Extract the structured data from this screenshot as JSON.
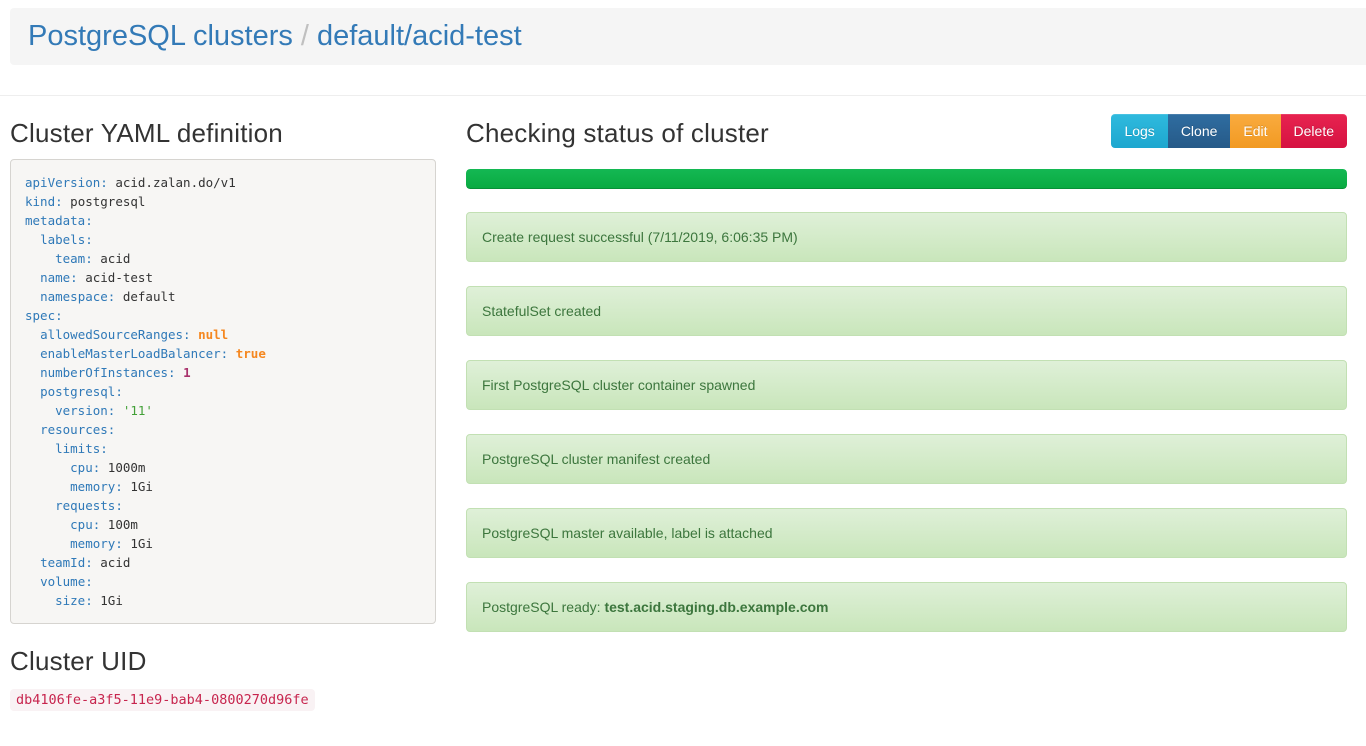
{
  "colors": {
    "link_blue": "#337ab7",
    "yaml_key_blue": "#2f79b8",
    "yaml_literal_orange": "#f5871f",
    "yaml_number_magenta": "#a9326c",
    "yaml_string_green": "#42a037",
    "uid_pink": "#c7254e",
    "progress_green": "#0db14a",
    "alert_green_text": "#3c763d",
    "button_info": "#25b1d8",
    "button_primary": "#2a6496",
    "button_warning": "#f8a433",
    "button_danger": "#e0194a"
  },
  "breadcrumb": {
    "root": "PostgreSQL clusters",
    "separator": "/",
    "current": "default/acid-test"
  },
  "yaml_section": {
    "title": "Cluster YAML definition",
    "lines": [
      {
        "indent": 0,
        "key": "apiVersion",
        "value": "acid.zalan.do/v1",
        "type": "plain"
      },
      {
        "indent": 0,
        "key": "kind",
        "value": "postgresql",
        "type": "plain"
      },
      {
        "indent": 0,
        "key": "metadata",
        "value": "",
        "type": "none"
      },
      {
        "indent": 2,
        "key": "labels",
        "value": "",
        "type": "none"
      },
      {
        "indent": 4,
        "key": "team",
        "value": "acid",
        "type": "plain"
      },
      {
        "indent": 2,
        "key": "name",
        "value": "acid-test",
        "type": "plain"
      },
      {
        "indent": 2,
        "key": "namespace",
        "value": "default",
        "type": "plain"
      },
      {
        "indent": 0,
        "key": "spec",
        "value": "",
        "type": "none"
      },
      {
        "indent": 2,
        "key": "allowedSourceRanges",
        "value": "null",
        "type": "literal"
      },
      {
        "indent": 2,
        "key": "enableMasterLoadBalancer",
        "value": "true",
        "type": "literal"
      },
      {
        "indent": 2,
        "key": "numberOfInstances",
        "value": "1",
        "type": "number"
      },
      {
        "indent": 2,
        "key": "postgresql",
        "value": "",
        "type": "none"
      },
      {
        "indent": 4,
        "key": "version",
        "value": "'11'",
        "type": "string"
      },
      {
        "indent": 2,
        "key": "resources",
        "value": "",
        "type": "none"
      },
      {
        "indent": 4,
        "key": "limits",
        "value": "",
        "type": "none"
      },
      {
        "indent": 6,
        "key": "cpu",
        "value": "1000m",
        "type": "plain"
      },
      {
        "indent": 6,
        "key": "memory",
        "value": "1Gi",
        "type": "plain"
      },
      {
        "indent": 4,
        "key": "requests",
        "value": "",
        "type": "none"
      },
      {
        "indent": 6,
        "key": "cpu",
        "value": "100m",
        "type": "plain"
      },
      {
        "indent": 6,
        "key": "memory",
        "value": "1Gi",
        "type": "plain"
      },
      {
        "indent": 2,
        "key": "teamId",
        "value": "acid",
        "type": "plain"
      },
      {
        "indent": 2,
        "key": "volume",
        "value": "",
        "type": "none"
      },
      {
        "indent": 4,
        "key": "size",
        "value": "1Gi",
        "type": "plain"
      }
    ]
  },
  "uid_section": {
    "title": "Cluster UID",
    "uid": "db4106fe-a3f5-11e9-bab4-0800270d96fe"
  },
  "status_panel": {
    "title": "Checking status of cluster",
    "buttons": [
      {
        "label": "Logs",
        "style": "info"
      },
      {
        "label": "Clone",
        "style": "primary"
      },
      {
        "label": "Edit",
        "style": "warning"
      },
      {
        "label": "Delete",
        "style": "danger"
      }
    ],
    "progress_percent": 100,
    "messages": [
      {
        "text": "Create request successful (7/11/2019, 6:06:35 PM)"
      },
      {
        "text": "StatefulSet created"
      },
      {
        "text": "First PostgreSQL cluster container spawned"
      },
      {
        "text": "PostgreSQL cluster manifest created"
      },
      {
        "text": "PostgreSQL master available, label is attached"
      },
      {
        "text": "PostgreSQL ready: ",
        "bold": "test.acid.staging.db.example.com"
      }
    ]
  }
}
